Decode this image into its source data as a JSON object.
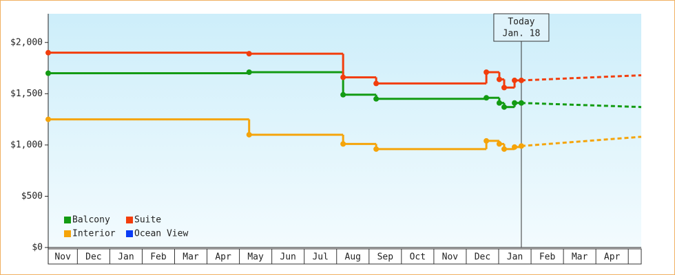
{
  "chart_data": {
    "type": "step-line",
    "categories": [
      "Nov",
      "Dec",
      "Jan",
      "Feb",
      "Mar",
      "Apr",
      "May",
      "Jun",
      "Jul",
      "Aug",
      "Sep",
      "Oct",
      "Nov",
      "Dec",
      "Jan",
      "Feb",
      "Mar",
      "Apr"
    ],
    "xlim": [
      0.1,
      18.4
    ],
    "ylim": [
      0,
      2280
    ],
    "yticks": [
      {
        "value": 0,
        "label": "$0"
      },
      {
        "value": 500,
        "label": "$500"
      },
      {
        "value": 1000,
        "label": "$1,000"
      },
      {
        "value": 1500,
        "label": "$1,500"
      },
      {
        "value": 2000,
        "label": "$2,000"
      }
    ],
    "series": [
      {
        "name": "Balcony",
        "color": "#139b13",
        "x": [
          0.1,
          6.3,
          9.2,
          10.22,
          13.62,
          14.02,
          14.17,
          14.49,
          14.7
        ],
        "values": [
          1700,
          1710,
          1490,
          1450,
          1460,
          1410,
          1370,
          1410,
          1410
        ],
        "forecast": {
          "x": [
            14.7,
            18.4
          ],
          "values": [
            1410,
            1370
          ]
        }
      },
      {
        "name": "Suite",
        "color": "#f23d0c",
        "x": [
          0.1,
          6.3,
          9.2,
          10.22,
          13.62,
          14.02,
          14.17,
          14.49,
          14.7
        ],
        "values": [
          1900,
          1890,
          1660,
          1600,
          1710,
          1640,
          1560,
          1630,
          1630
        ],
        "forecast": {
          "x": [
            14.7,
            18.4
          ],
          "values": [
            1630,
            1680
          ]
        }
      },
      {
        "name": "Interior",
        "color": "#f5a40a",
        "x": [
          0.1,
          6.3,
          9.2,
          10.22,
          13.62,
          14.02,
          14.17,
          14.49,
          14.7
        ],
        "values": [
          1250,
          1100,
          1010,
          960,
          1040,
          1010,
          960,
          980,
          990
        ],
        "forecast": {
          "x": [
            14.7,
            18.4
          ],
          "values": [
            990,
            1080
          ]
        }
      },
      {
        "name": "Ocean View",
        "color": "#0a3cf5",
        "x": [],
        "values": []
      }
    ],
    "annotation": {
      "x": 14.7,
      "lines": [
        "Today",
        "Jan. 18"
      ]
    }
  }
}
